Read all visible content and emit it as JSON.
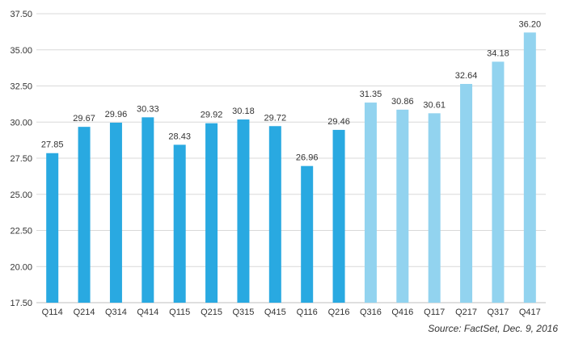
{
  "chart_data": {
    "type": "bar",
    "categories": [
      "Q114",
      "Q214",
      "Q314",
      "Q414",
      "Q115",
      "Q215",
      "Q315",
      "Q415",
      "Q116",
      "Q216",
      "Q316",
      "Q416",
      "Q117",
      "Q217",
      "Q317",
      "Q417"
    ],
    "values": [
      27.85,
      29.67,
      29.96,
      30.33,
      28.43,
      29.92,
      30.18,
      29.72,
      26.96,
      29.46,
      31.35,
      30.86,
      30.61,
      32.64,
      34.18,
      36.2
    ],
    "value_labels": [
      "27.85",
      "29.67",
      "29.96",
      "30.33",
      "28.43",
      "29.92",
      "30.18",
      "29.72",
      "26.96",
      "29.46",
      "31.35",
      "30.86",
      "30.61",
      "32.64",
      "34.18",
      "36.20"
    ],
    "ylim": [
      17.5,
      37.5
    ],
    "yticks": [
      17.5,
      20.0,
      22.5,
      25.0,
      27.5,
      30.0,
      32.5,
      35.0,
      37.5
    ],
    "ytick_labels": [
      "17.50",
      "20.00",
      "22.50",
      "25.00",
      "27.50",
      "30.00",
      "32.50",
      "35.00",
      "37.50"
    ],
    "grid": true,
    "legend": "none",
    "colors": {
      "actual": "#29A9E1",
      "estimate": "#92D3EF",
      "grid": "#D9D9D9",
      "axis": "#BFBFBF",
      "text": "#333333"
    },
    "actual_count": 10
  },
  "source": {
    "text": "Source: FactSet, Dec. 9, 2016"
  }
}
